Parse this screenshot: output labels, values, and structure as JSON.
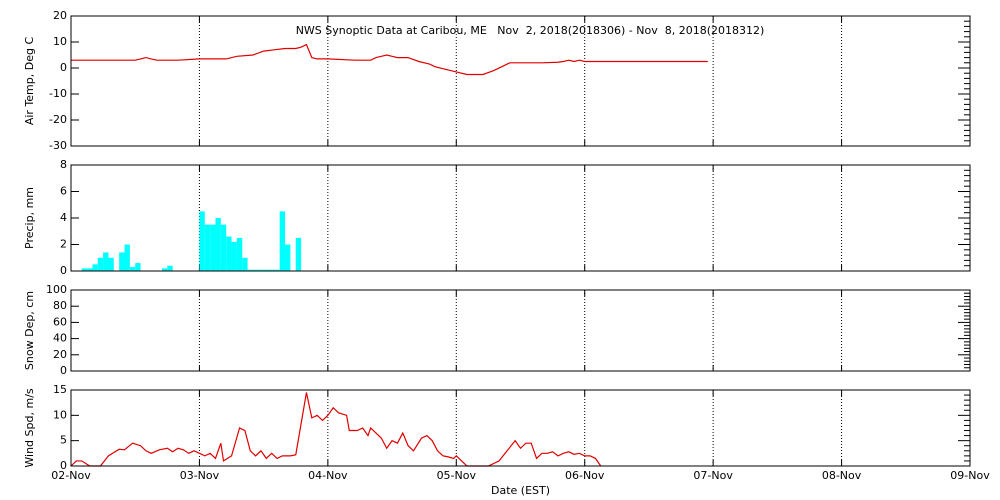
{
  "chart_data": [
    {
      "type": "line",
      "title": "NWS Synoptic Data at Caribou, ME   Nov  2, 2018(2018306) - Nov  8, 2018(2018312)",
      "ylabel": "Air Temp, Deg C",
      "ylim": [
        -30,
        20
      ],
      "yticks": [
        -30,
        -20,
        -10,
        0,
        10,
        20
      ],
      "xlim": [
        0,
        168
      ],
      "xticks": [
        0,
        24,
        48,
        72,
        96,
        120,
        144,
        168
      ],
      "grid": true,
      "color": "#e00000",
      "x": [
        0,
        6,
        12,
        13,
        14,
        15,
        16,
        17,
        20,
        24,
        29,
        31,
        34,
        36,
        38,
        40,
        42,
        43,
        44,
        45,
        46,
        48,
        53,
        56,
        57,
        58,
        59,
        60,
        61,
        63,
        65,
        67,
        68,
        70,
        72,
        74,
        77,
        79,
        81,
        82,
        83,
        84,
        88,
        91,
        92,
        93,
        94,
        95,
        96,
        97,
        98,
        100,
        108,
        119
      ],
      "values": [
        3,
        3,
        3,
        3.5,
        4,
        3.5,
        3,
        3,
        3,
        3.5,
        3.5,
        4.5,
        5,
        6.5,
        7,
        7.5,
        7.5,
        8,
        9,
        4,
        3.5,
        3.5,
        3,
        3,
        4,
        4.5,
        5,
        4.5,
        4,
        4,
        2.5,
        1.5,
        0.5,
        -0.5,
        -1.5,
        -2.5,
        -2.5,
        -1,
        1,
        2,
        2,
        2,
        2,
        2.2,
        2.5,
        3,
        2.5,
        3,
        2.5,
        2.5,
        2.5,
        2.5,
        2.5,
        2.5
      ]
    },
    {
      "type": "bar",
      "ylabel": "Precip, mm",
      "ylim": [
        0,
        8
      ],
      "yticks": [
        0,
        2,
        4,
        6,
        8
      ],
      "xlim": [
        0,
        168
      ],
      "xticks": [
        0,
        24,
        48,
        72,
        96,
        120,
        144,
        168
      ],
      "grid": true,
      "color": "#00ffff",
      "x": [
        2,
        3,
        4,
        5,
        6,
        7,
        9,
        10,
        11,
        12,
        17,
        18,
        24,
        25,
        26,
        27,
        28,
        29,
        30,
        31,
        32,
        33,
        34,
        35,
        36,
        37,
        38,
        39,
        40,
        42
      ],
      "values": [
        0.2,
        0.2,
        0.5,
        1.0,
        1.4,
        1.0,
        1.4,
        2.0,
        0.3,
        0.6,
        0.2,
        0.4,
        4.5,
        3.5,
        3.5,
        4.0,
        3.5,
        2.6,
        2.2,
        2.5,
        1.0,
        0.1,
        0.1,
        0.1,
        0.1,
        0.1,
        0.1,
        4.5,
        2.0,
        2.5
      ]
    },
    {
      "type": "line",
      "ylabel": "Snow Dep, cm",
      "ylim": [
        0,
        100
      ],
      "yticks": [
        0,
        20,
        40,
        60,
        80,
        100
      ],
      "xlim": [
        0,
        168
      ],
      "xticks": [
        0,
        24,
        48,
        72,
        96,
        120,
        144,
        168
      ],
      "grid": true
    },
    {
      "type": "line",
      "ylabel": "Wind Spd, m/s",
      "xlabel": "Date (EST)",
      "ylim": [
        0,
        15
      ],
      "yticks": [
        0,
        5,
        10,
        15
      ],
      "xlim": [
        0,
        168
      ],
      "grid": true,
      "color": "#e00000",
      "xticks": [
        {
          "value": 0,
          "label": "02-Nov"
        },
        {
          "value": 24,
          "label": "03-Nov"
        },
        {
          "value": 48,
          "label": "04-Nov"
        },
        {
          "value": 72,
          "label": "05-Nov"
        },
        {
          "value": 96,
          "label": "06-Nov"
        },
        {
          "value": 120,
          "label": "07-Nov"
        },
        {
          "value": 144,
          "label": "08-Nov"
        },
        {
          "value": 168,
          "label": "09-Nov"
        }
      ],
      "x": [
        0,
        1,
        2,
        3.5,
        5.5,
        7,
        9,
        10,
        11.5,
        13,
        14,
        15,
        16.5,
        18,
        19,
        20,
        21,
        22,
        23,
        24,
        25,
        26,
        27,
        28,
        28.5,
        30,
        31.5,
        32.5,
        33.5,
        34.5,
        35.5,
        36.5,
        37.5,
        38.5,
        39.5,
        41,
        42,
        44,
        45,
        46,
        47,
        48,
        49,
        50,
        51.5,
        52,
        53.5,
        54.5,
        55.5,
        56,
        57,
        58,
        59,
        60,
        61,
        62,
        63,
        64,
        65.5,
        66.5,
        67.5,
        68.5,
        69.5,
        70.5,
        71.5,
        72,
        73,
        74,
        78,
        80,
        81.5,
        83,
        84,
        85,
        86,
        87,
        88,
        89,
        90,
        91,
        92,
        93,
        94,
        95,
        96,
        97,
        98,
        99
      ],
      "values": [
        0,
        1,
        1,
        0,
        0,
        2,
        3.3,
        3.2,
        4.5,
        4,
        3,
        2.5,
        3.2,
        3.5,
        2.8,
        3.5,
        3.2,
        2.5,
        3,
        2.5,
        2,
        2.5,
        1.5,
        4.5,
        1,
        2,
        7.5,
        7,
        3,
        2,
        3,
        1.5,
        2.5,
        1.5,
        2,
        2,
        2.2,
        14.5,
        9.5,
        10,
        9,
        10,
        11.5,
        10.5,
        10,
        7,
        7,
        7.5,
        6,
        7.5,
        6.5,
        5.5,
        3.5,
        5,
        4.5,
        6.5,
        4,
        3,
        5.5,
        6,
        5,
        3,
        2,
        1.8,
        1.5,
        2,
        1,
        0,
        0,
        1,
        3,
        5,
        3.5,
        4.5,
        4.5,
        1.5,
        2.5,
        2.5,
        2.8,
        2,
        2.5,
        2.8,
        2.3,
        2.5,
        2,
        2,
        1.5,
        0
      ]
    }
  ]
}
